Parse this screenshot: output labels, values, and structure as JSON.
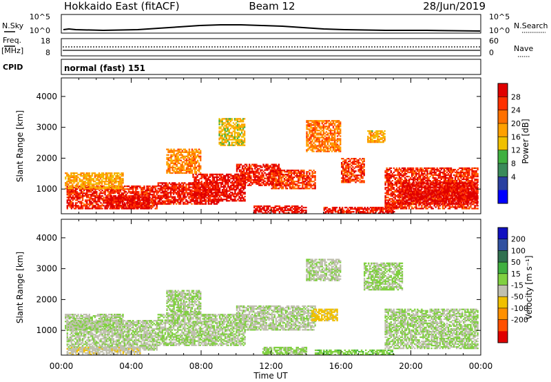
{
  "header": {
    "station": "Hokkaido East (fitACF)",
    "beam": "Beam 12",
    "date": "28/Jun/2019"
  },
  "noise_panel": {
    "left_label": "N.Sky",
    "right_label": "N.Search",
    "left_ticks": [
      "10^5",
      "10^0"
    ],
    "right_ticks": [
      "10^5",
      "10^0"
    ]
  },
  "freq_panel": {
    "left_label_1": "Freq.",
    "left_label_2": "[MHz]",
    "left_ticks": [
      "18",
      "8"
    ],
    "right_label": "Nave",
    "right_ticks": [
      "60",
      "0"
    ]
  },
  "cpid_panel": {
    "label": "CPID",
    "value": "normal (fast) 151"
  },
  "x_axis": {
    "ticks": [
      "00:00",
      "04:00",
      "08:00",
      "12:00",
      "16:00",
      "20:00",
      "00:00"
    ],
    "label": "Time UT"
  },
  "colorbars": {
    "power": {
      "label": "Power [dB]",
      "ticks": [
        "28",
        "24",
        "20",
        "16",
        "12",
        "8",
        "4"
      ],
      "colors": [
        "#e00000",
        "#ff3000",
        "#ff7000",
        "#ffa000",
        "#f0c000",
        "#40b040",
        "#3a8a5a",
        "#2a40a0",
        "#0000ff"
      ]
    },
    "velocity": {
      "label": "Velocity [m s⁻¹]",
      "ticks": [
        "200",
        "100",
        "50",
        "15",
        "-15",
        "-50",
        "-100",
        "-200"
      ],
      "colors": [
        "#1010c0",
        "#3050a0",
        "#307050",
        "#40b040",
        "#80d040",
        "#c0c0b0",
        "#f0c000",
        "#ff9000",
        "#ff5000",
        "#e00000"
      ]
    }
  },
  "chart_data": [
    {
      "type": "heatmap",
      "title": "Power",
      "ylabel": "Slant Range [km]",
      "xlabel": "",
      "ylim": [
        200,
        4600
      ],
      "y_ticks": [
        1000,
        2000,
        3000,
        4000
      ],
      "xlim_hours": [
        0,
        24
      ],
      "value_range": [
        0,
        30
      ],
      "units": "dB",
      "regions": [
        {
          "t0": 0.3,
          "t1": 5.5,
          "r0": 350,
          "r1": 1100,
          "v": 26
        },
        {
          "t0": 2.5,
          "t1": 5.0,
          "r0": 350,
          "r1": 800,
          "v": 29
        },
        {
          "t0": 5.5,
          "t1": 9.0,
          "r0": 500,
          "r1": 1200,
          "v": 27
        },
        {
          "t0": 7.5,
          "t1": 10.5,
          "r0": 600,
          "r1": 1500,
          "v": 28
        },
        {
          "t0": 10.0,
          "t1": 12.5,
          "r0": 1100,
          "r1": 1800,
          "v": 27
        },
        {
          "t0": 12.0,
          "t1": 14.5,
          "r0": 1000,
          "r1": 1600,
          "v": 25
        },
        {
          "t0": 11.0,
          "t1": 14.0,
          "r0": 200,
          "r1": 450,
          "v": 28
        },
        {
          "t0": 15.0,
          "t1": 19.0,
          "r0": 200,
          "r1": 400,
          "v": 27
        },
        {
          "t0": 18.5,
          "t1": 23.8,
          "r0": 350,
          "r1": 1700,
          "v": 26
        },
        {
          "t0": 19.5,
          "t1": 23.8,
          "r0": 500,
          "r1": 1200,
          "v": 29
        },
        {
          "t0": 14.0,
          "t1": 16.0,
          "r0": 2200,
          "r1": 3200,
          "v": 21
        },
        {
          "t0": 16.0,
          "t1": 17.3,
          "r0": 1200,
          "r1": 2000,
          "v": 25
        },
        {
          "t0": 17.5,
          "t1": 18.5,
          "r0": 2500,
          "r1": 2900,
          "v": 17
        },
        {
          "t0": 0.2,
          "t1": 3.5,
          "r0": 1000,
          "r1": 1500,
          "v": 18
        },
        {
          "t0": 6.0,
          "t1": 8.0,
          "r0": 1500,
          "r1": 2300,
          "v": 20
        },
        {
          "t0": 9.0,
          "t1": 10.5,
          "r0": 2400,
          "r1": 3300,
          "v": 16
        }
      ]
    },
    {
      "type": "heatmap",
      "title": "Velocity",
      "ylabel": "Slant Range [km]",
      "xlabel": "Time UT",
      "ylim": [
        200,
        4600
      ],
      "y_ticks": [
        1000,
        2000,
        3000,
        4000
      ],
      "xlim_hours": [
        0,
        24
      ],
      "value_range": [
        -250,
        250
      ],
      "units": "m/s",
      "regions": [
        {
          "t0": 0.3,
          "t1": 5.5,
          "r0": 350,
          "r1": 1300,
          "v": -5
        },
        {
          "t0": 0.3,
          "t1": 4.5,
          "r0": 200,
          "r1": 450,
          "v": -40
        },
        {
          "t0": 5.5,
          "t1": 10.5,
          "r0": 500,
          "r1": 1500,
          "v": 0
        },
        {
          "t0": 10.0,
          "t1": 14.5,
          "r0": 1000,
          "r1": 1800,
          "v": -5
        },
        {
          "t0": 11.5,
          "t1": 14.0,
          "r0": 200,
          "r1": 450,
          "v": 8
        },
        {
          "t0": 14.5,
          "t1": 19.0,
          "r0": 200,
          "r1": 350,
          "v": 40
        },
        {
          "t0": 14.0,
          "t1": 16.0,
          "r0": 2600,
          "r1": 3300,
          "v": -5
        },
        {
          "t0": 14.3,
          "t1": 15.8,
          "r0": 1300,
          "r1": 1700,
          "v": -60
        },
        {
          "t0": 18.5,
          "t1": 23.8,
          "r0": 400,
          "r1": 1700,
          "v": 0
        },
        {
          "t0": 17.3,
          "t1": 19.5,
          "r0": 2300,
          "r1": 3200,
          "v": 3
        },
        {
          "t0": 0.2,
          "t1": 3.5,
          "r0": 1000,
          "r1": 1500,
          "v": -3
        },
        {
          "t0": 6.0,
          "t1": 8.0,
          "r0": 1500,
          "r1": 2300,
          "v": 2
        }
      ]
    }
  ]
}
